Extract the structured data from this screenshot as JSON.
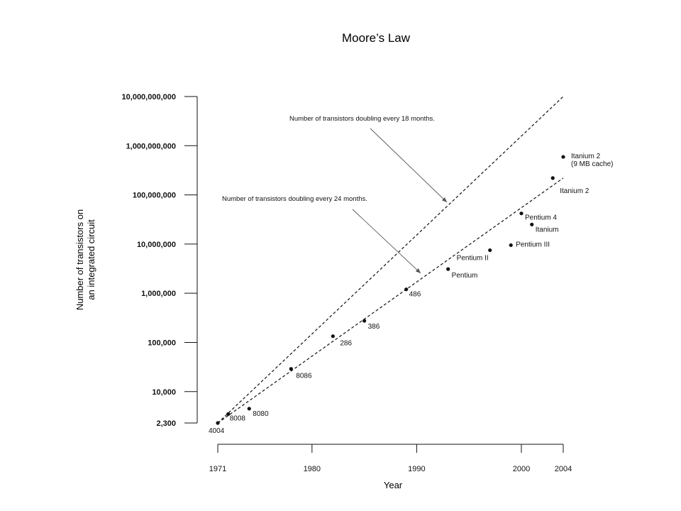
{
  "chart_data": {
    "type": "scatter",
    "title": "Moore’s Law",
    "xlabel": "Year",
    "ylabel": [
      "Number of transistors on",
      "an integrated circuit"
    ],
    "y_scale": "log",
    "xlim": [
      1971,
      2004
    ],
    "ylim": [
      2300,
      10000000000
    ],
    "x_ticks": [
      {
        "value": 1971,
        "label": "1971"
      },
      {
        "value": 1980,
        "label": "1980"
      },
      {
        "value": 1990,
        "label": "1990"
      },
      {
        "value": 2000,
        "label": "2000"
      },
      {
        "value": 2004,
        "label": "2004"
      }
    ],
    "y_ticks": [
      {
        "value": 2300,
        "label": "2,300"
      },
      {
        "value": 10000,
        "label": "10,000"
      },
      {
        "value": 100000,
        "label": "100,000"
      },
      {
        "value": 1000000,
        "label": "1,000,000"
      },
      {
        "value": 10000000,
        "label": "10,000,000"
      },
      {
        "value": 100000000,
        "label": "100,000,000"
      },
      {
        "value": 1000000000,
        "label": "1,000,000,000"
      },
      {
        "value": 10000000000,
        "label": "10,000,000,000"
      }
    ],
    "points": [
      {
        "label": "4004",
        "x": 1971,
        "y": 2300
      },
      {
        "label": "8008",
        "x": 1972,
        "y": 3500
      },
      {
        "label": "8080",
        "x": 1974,
        "y": 4500
      },
      {
        "label": "8086",
        "x": 1978,
        "y": 29000
      },
      {
        "label": "286",
        "x": 1982,
        "y": 134000
      },
      {
        "label": "386",
        "x": 1985,
        "y": 275000
      },
      {
        "label": "486",
        "x": 1989,
        "y": 1200000
      },
      {
        "label": "Pentium",
        "x": 1993,
        "y": 3100000
      },
      {
        "label": "Pentium II",
        "x": 1997,
        "y": 7500000
      },
      {
        "label": "Pentium III",
        "x": 1999,
        "y": 9500000
      },
      {
        "label": "Pentium 4",
        "x": 2000,
        "y": 42000000
      },
      {
        "label": "Itanium",
        "x": 2001,
        "y": 25000000
      },
      {
        "label": "Itanium 2",
        "x": 2003,
        "y": 220000000
      },
      {
        "label": "Itanium 2\n(9 MB cache)",
        "x": 2004,
        "y": 592000000
      }
    ],
    "trend_lines": [
      {
        "name": "Number of transistors doubling every 18 months.",
        "from": [
          1971,
          2300
        ],
        "to": [
          2004,
          10000000000
        ]
      },
      {
        "name": "Number of transistors doubling every 24 months.",
        "from": [
          1971,
          2300
        ],
        "to": [
          2004,
          220000000
        ]
      }
    ],
    "grid": false,
    "legend": "none"
  }
}
